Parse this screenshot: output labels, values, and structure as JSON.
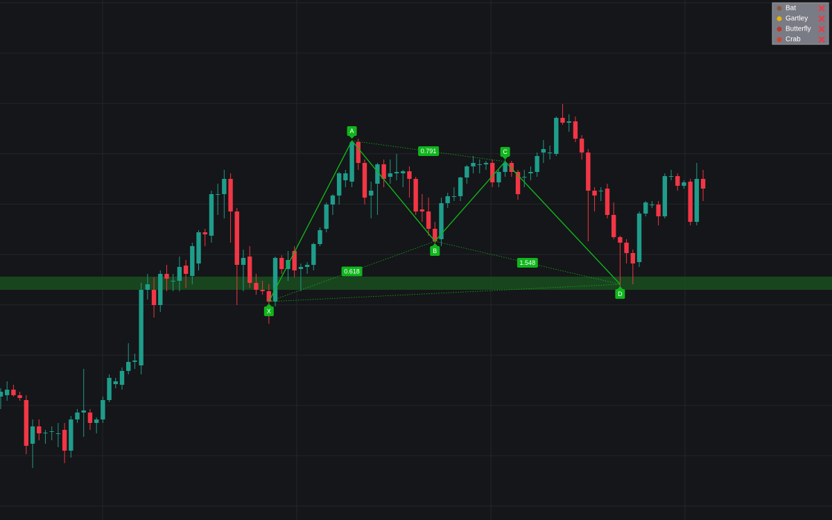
{
  "chart_data": {
    "type": "candlestick",
    "ylim": [
      0,
      750
    ],
    "up_color": "#1f9d8b",
    "down_color": "#f23645",
    "pattern_color": "#10b51c",
    "zone_color": "#1a4a1f",
    "values": [
      [
        178,
        190,
        160,
        185
      ],
      [
        180,
        200,
        172,
        188
      ],
      [
        188,
        195,
        178,
        180
      ],
      [
        180,
        185,
        172,
        176
      ],
      [
        173,
        180,
        95,
        107
      ],
      [
        110,
        145,
        75,
        135
      ],
      [
        135,
        145,
        115,
        125
      ],
      [
        125,
        130,
        110,
        126
      ],
      [
        127,
        135,
        115,
        128
      ],
      [
        125,
        140,
        105,
        125
      ],
      [
        130,
        140,
        82,
        100
      ],
      [
        100,
        150,
        90,
        145
      ],
      [
        145,
        160,
        140,
        155
      ],
      [
        155,
        218,
        120,
        158
      ],
      [
        155,
        160,
        130,
        140
      ],
      [
        140,
        148,
        125,
        145
      ],
      [
        145,
        178,
        140,
        173
      ],
      [
        173,
        210,
        170,
        205
      ],
      [
        196,
        205,
        190,
        200
      ],
      [
        195,
        220,
        188,
        215
      ],
      [
        215,
        255,
        210,
        228
      ],
      [
        228,
        240,
        218,
        230
      ],
      [
        223,
        342,
        210,
        332
      ],
      [
        332,
        355,
        318,
        340
      ],
      [
        332,
        350,
        292,
        310
      ],
      [
        310,
        360,
        300,
        355
      ],
      [
        355,
        368,
        330,
        348
      ],
      [
        345,
        355,
        330,
        345
      ],
      [
        345,
        380,
        330,
        365
      ],
      [
        367,
        375,
        335,
        355
      ],
      [
        352,
        400,
        340,
        395
      ],
      [
        370,
        418,
        360,
        415
      ],
      [
        415,
        420,
        395,
        412
      ],
      [
        410,
        475,
        400,
        470
      ],
      [
        470,
        485,
        440,
        470
      ],
      [
        470,
        505,
        435,
        492
      ],
      [
        492,
        500,
        400,
        445
      ],
      [
        445,
        450,
        310,
        368
      ],
      [
        368,
        390,
        330,
        378
      ],
      [
        380,
        395,
        335,
        342
      ],
      [
        342,
        355,
        325,
        332
      ],
      [
        332,
        345,
        325,
        330
      ],
      [
        330,
        340,
        283,
        315
      ],
      [
        315,
        380,
        308,
        378
      ],
      [
        378,
        382,
        355,
        362
      ],
      [
        362,
        388,
        345,
        375
      ],
      [
        388,
        395,
        350,
        360
      ],
      [
        362,
        370,
        330,
        365
      ],
      [
        365,
        372,
        355,
        368
      ],
      [
        368,
        400,
        360,
        398
      ],
      [
        398,
        422,
        395,
        418
      ],
      [
        420,
        458,
        415,
        455
      ],
      [
        455,
        470,
        440,
        468
      ],
      [
        468,
        502,
        455,
        500
      ],
      [
        490,
        505,
        480,
        500
      ],
      [
        488,
        547,
        480,
        545
      ],
      [
        545,
        550,
        505,
        515
      ],
      [
        515,
        520,
        455,
        465
      ],
      [
        468,
        488,
        435,
        475
      ],
      [
        485,
        515,
        440,
        513
      ],
      [
        513,
        520,
        480,
        492
      ],
      [
        495,
        520,
        485,
        500
      ],
      [
        500,
        528,
        490,
        502
      ],
      [
        500,
        505,
        480,
        503
      ],
      [
        503,
        510,
        465,
        492
      ],
      [
        492,
        495,
        440,
        445
      ],
      [
        448,
        470,
        430,
        445
      ],
      [
        445,
        465,
        410,
        420
      ],
      [
        420,
        430,
        395,
        402
      ],
      [
        405,
        465,
        395,
        457
      ],
      [
        457,
        472,
        450,
        467
      ],
      [
        467,
        480,
        460,
        467
      ],
      [
        467,
        495,
        460,
        494
      ],
      [
        494,
        512,
        485,
        510
      ],
      [
        510,
        525,
        500,
        515
      ],
      [
        513,
        520,
        500,
        513
      ],
      [
        513,
        518,
        505,
        515
      ],
      [
        515,
        520,
        480,
        487
      ],
      [
        487,
        505,
        480,
        502
      ],
      [
        502,
        520,
        495,
        515
      ],
      [
        515,
        518,
        495,
        502
      ],
      [
        502,
        505,
        462,
        470
      ],
      [
        495,
        505,
        480,
        495
      ],
      [
        500,
        510,
        490,
        502
      ],
      [
        502,
        530,
        495,
        525
      ],
      [
        530,
        548,
        515,
        535
      ],
      [
        530,
        540,
        520,
        530
      ],
      [
        528,
        582,
        525,
        580
      ],
      [
        580,
        600,
        570,
        573
      ],
      [
        573,
        585,
        560,
        575
      ],
      [
        575,
        582,
        545,
        550
      ],
      [
        550,
        555,
        520,
        530
      ],
      [
        530,
        535,
        402,
        475
      ],
      [
        475,
        480,
        445,
        468
      ],
      [
        475,
        480,
        460,
        475
      ],
      [
        478,
        485,
        435,
        440
      ],
      [
        440,
        458,
        405,
        408
      ],
      [
        408,
        410,
        335,
        400
      ],
      [
        400,
        405,
        370,
        385
      ],
      [
        385,
        390,
        340,
        370
      ],
      [
        372,
        445,
        365,
        442
      ],
      [
        442,
        460,
        438,
        458
      ],
      [
        455,
        460,
        450,
        455
      ],
      [
        455,
        460,
        425,
        438
      ],
      [
        438,
        500,
        435,
        496
      ],
      [
        496,
        505,
        490,
        496
      ],
      [
        496,
        500,
        475,
        482
      ],
      [
        482,
        490,
        478,
        487
      ],
      [
        488,
        492,
        425,
        430
      ],
      [
        430,
        515,
        425,
        492
      ],
      [
        492,
        505,
        460,
        478
      ]
    ],
    "zone": {
      "low": 332,
      "high": 351
    },
    "pattern": {
      "points": [
        {
          "label": "X",
          "index": 42,
          "price": 315
        },
        {
          "label": "A",
          "index": 55,
          "price": 547
        },
        {
          "label": "B",
          "index": 68,
          "price": 402
        },
        {
          "label": "C",
          "index": 79,
          "price": 517
        },
        {
          "label": "D",
          "index": 97,
          "price": 340
        }
      ],
      "ratios": [
        0.618,
        0.791,
        1.548
      ]
    },
    "legend": [
      "Bat",
      "Gartley",
      "Butterfly",
      "Crab"
    ]
  }
}
